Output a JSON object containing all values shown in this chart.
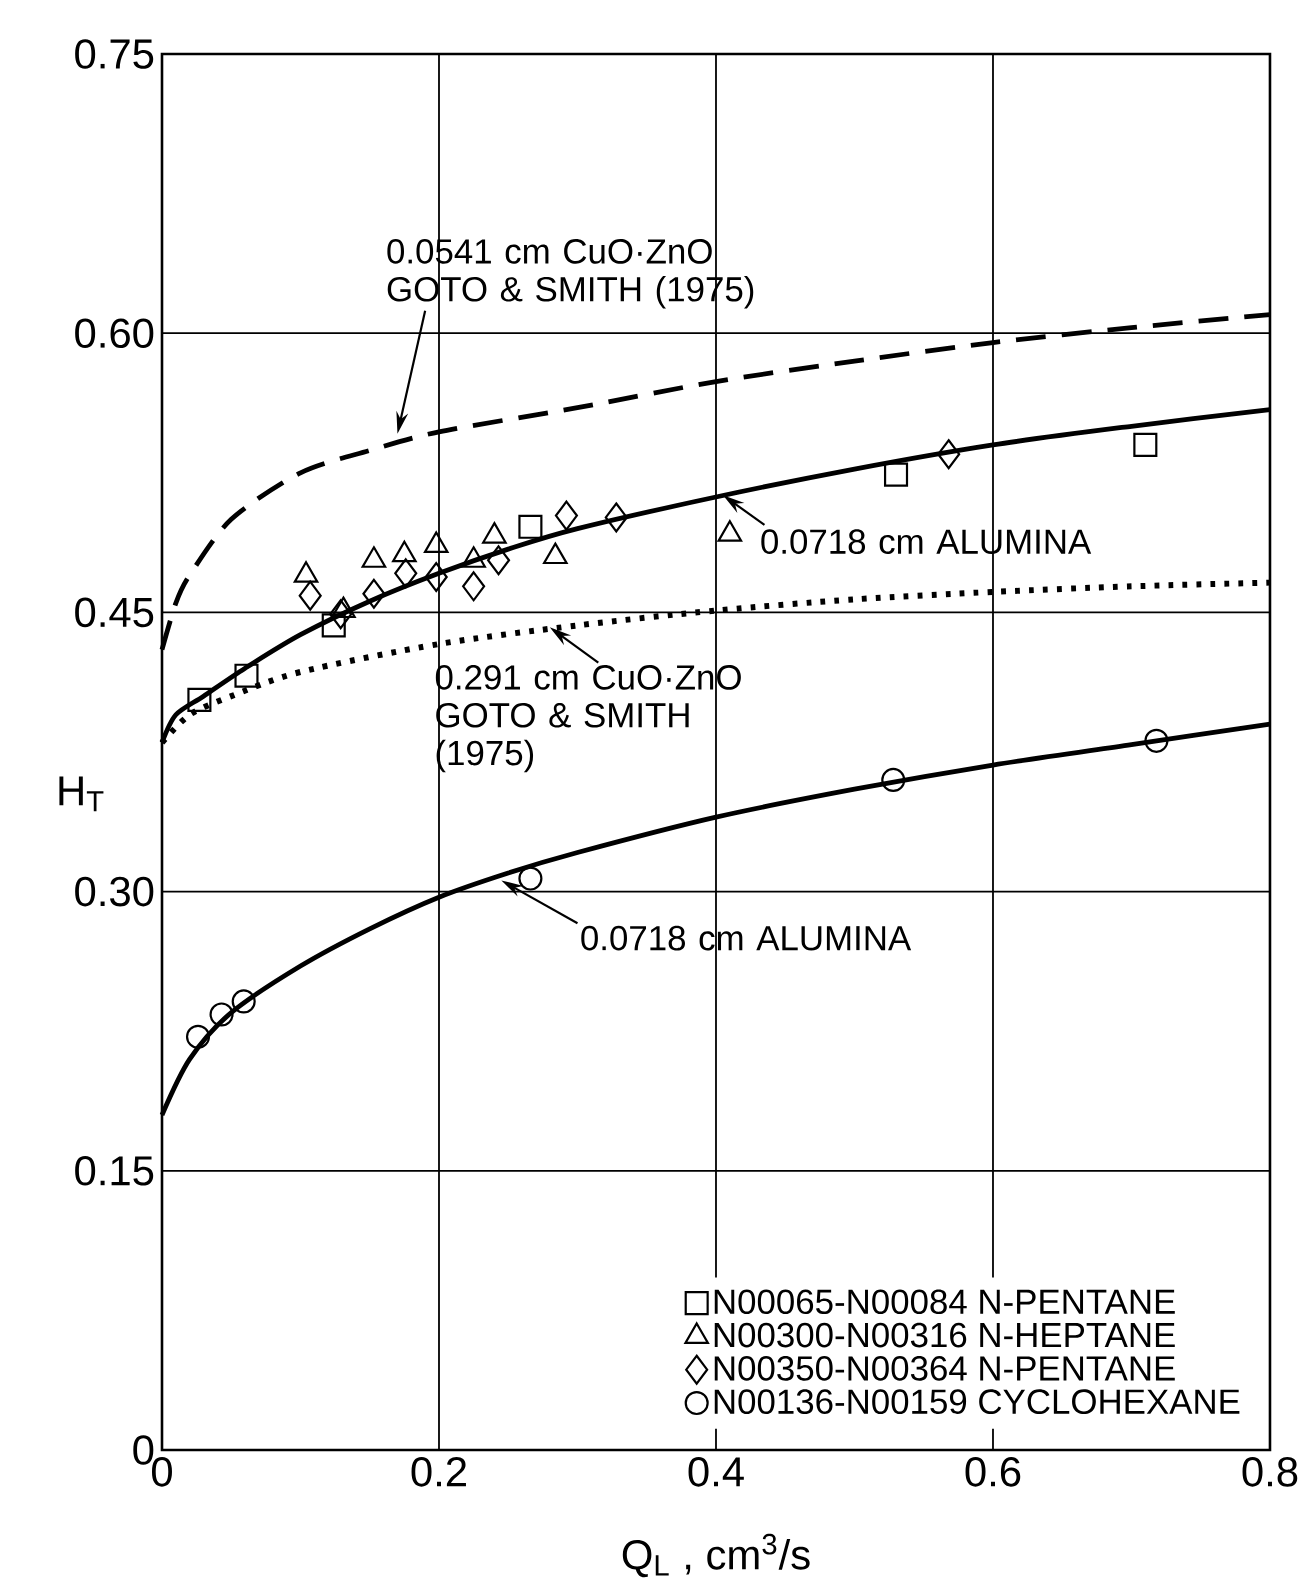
{
  "chart_data": {
    "type": "scatter",
    "xlabel": "Q$_{L}$ , cm$^{3}$/s",
    "ylabel": "H$_{T}$",
    "xlim": [
      0,
      0.8
    ],
    "ylim": [
      0,
      0.75
    ],
    "xticks": [
      0,
      0.2,
      0.4,
      0.6,
      0.8
    ],
    "yticks": [
      0,
      {
        "value": 0.15,
        "label": "0.15"
      },
      {
        "value": 0.3,
        "label": "0.30"
      },
      {
        "value": 0.45,
        "label": "0.45"
      },
      {
        "value": 0.6,
        "label": "0.60"
      },
      {
        "value": 0.75,
        "label": "0.75"
      }
    ],
    "grid": true,
    "legend": "bottom right",
    "series": [
      {
        "name": "N00065-N00084 N-PENTANE",
        "marker": "square",
        "color": "#000000",
        "x": [
          0.027,
          0.061,
          0.124,
          0.266,
          0.53,
          0.71
        ],
        "values": [
          0.403,
          0.416,
          0.443,
          0.496,
          0.524,
          0.54
        ]
      },
      {
        "name": "N00300-N00316 N-HEPTANE",
        "marker": "triangle",
        "color": "#000000",
        "x": [
          0.104,
          0.131,
          0.153,
          0.175,
          0.198,
          0.225,
          0.24,
          0.284,
          0.41
        ],
        "values": [
          0.47,
          0.451,
          0.478,
          0.481,
          0.486,
          0.478,
          0.491,
          0.48,
          0.492
        ]
      },
      {
        "name": "N00350-N00364 N-PENTANE",
        "marker": "diamond",
        "color": "#000000",
        "x": [
          0.107,
          0.129,
          0.153,
          0.176,
          0.198,
          0.225,
          0.243,
          0.292,
          0.328,
          0.568
        ],
        "values": [
          0.459,
          0.449,
          0.46,
          0.471,
          0.469,
          0.464,
          0.478,
          0.502,
          0.501,
          0.535
        ]
      },
      {
        "name": "N00136-N00159 CYCLOHEXANE",
        "marker": "circle",
        "color": "#000000",
        "x": [
          0.026,
          0.043,
          0.059,
          0.266,
          0.528,
          0.718
        ],
        "values": [
          0.222,
          0.234,
          0.241,
          0.307,
          0.36,
          0.381
        ]
      },
      {
        "type": "line",
        "line_style": "dashed",
        "color": "#000000",
        "x": [
          0,
          0.01,
          0.02,
          0.05,
          0.1,
          0.15,
          0.2,
          0.3,
          0.4,
          0.5,
          0.6,
          0.7,
          0.8
        ],
        "values": [
          0.43,
          0.455,
          0.47,
          0.5,
          0.525,
          0.537,
          0.547,
          0.56,
          0.574,
          0.585,
          0.595,
          0.603,
          0.61
        ]
      },
      {
        "type": "line",
        "line_style": "solid",
        "color": "#000000",
        "x": [
          0,
          0.01,
          0.03,
          0.06,
          0.1,
          0.15,
          0.2,
          0.25,
          0.3,
          0.4,
          0.5,
          0.6,
          0.7,
          0.8
        ],
        "values": [
          0.38,
          0.395,
          0.405,
          0.42,
          0.438,
          0.456,
          0.471,
          0.484,
          0.495,
          0.512,
          0.527,
          0.54,
          0.55,
          0.559
        ]
      },
      {
        "type": "line",
        "line_style": "dotted",
        "color": "#000000",
        "x": [
          0,
          0.02,
          0.05,
          0.1,
          0.2,
          0.3,
          0.4,
          0.5,
          0.6,
          0.7,
          0.8
        ],
        "values": [
          0.38,
          0.395,
          0.405,
          0.418,
          0.433,
          0.443,
          0.451,
          0.457,
          0.461,
          0.464,
          0.466
        ]
      },
      {
        "type": "line",
        "line_style": "solid",
        "color": "#000000",
        "x": [
          0,
          0.02,
          0.05,
          0.1,
          0.15,
          0.2,
          0.25,
          0.3,
          0.4,
          0.5,
          0.6,
          0.7,
          0.8
        ],
        "values": [
          0.18,
          0.21,
          0.235,
          0.26,
          0.28,
          0.297,
          0.31,
          0.321,
          0.34,
          0.355,
          0.368,
          0.379,
          0.39
        ]
      }
    ],
    "annotations": [
      {
        "text": "0.0541 cm CuO·ZnO GOTO & SMITH (1975)",
        "x": 0.17,
        "y": 0.546
      },
      {
        "text": "0.0718 cm ALUMINA",
        "x": 0.405,
        "y": 0.513
      },
      {
        "text": "0.291 cm CuO·ZnO GOTO & SMITH (1975)",
        "x": 0.28,
        "y": 0.442
      },
      {
        "text": "0.0718 cm ALUMINA",
        "x": 0.245,
        "y": 0.306
      }
    ]
  }
}
